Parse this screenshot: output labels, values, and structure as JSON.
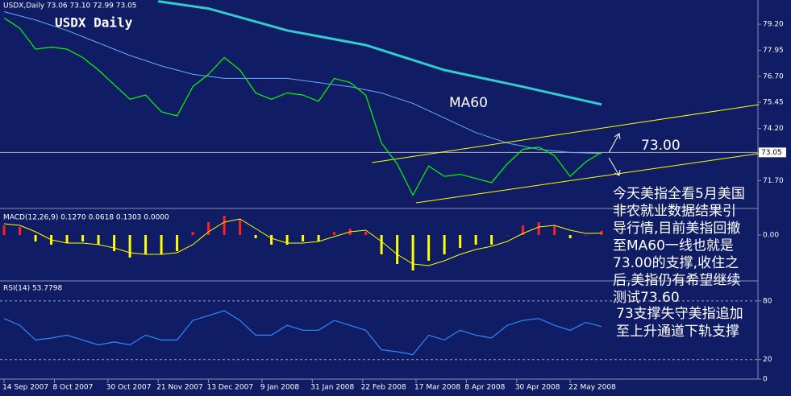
{
  "chart_data": [
    {
      "type": "line",
      "title": "USDX Daily",
      "subtitle": "USDX,Daily  73.06 73.10 72.99 73.05",
      "x": [
        0,
        5,
        10,
        15,
        20,
        25,
        30,
        35,
        40,
        45,
        50,
        55,
        60,
        65,
        70,
        75,
        80,
        85,
        90,
        95,
        100,
        105,
        110,
        115,
        120,
        125,
        130,
        135,
        140,
        145,
        150,
        155,
        160,
        165,
        170,
        175,
        180,
        185,
        190
      ],
      "series": [
        {
          "color": "#00ff00",
          "values": [
            79.5,
            79.0,
            78.0,
            78.1,
            78.0,
            77.6,
            77.0,
            76.3,
            75.6,
            75.8,
            75.0,
            74.8,
            76.2,
            76.8,
            77.6,
            77.0,
            75.9,
            75.6,
            75.9,
            75.8,
            75.5,
            76.6,
            76.4,
            75.8,
            73.5,
            72.5,
            71.0,
            72.4,
            71.9,
            72.0,
            71.8,
            71.6,
            72.5,
            73.2,
            73.3,
            72.9,
            71.9,
            72.6,
            73.05
          ]
        }
      ],
      "moving_averages": [
        {
          "color": "#33cccc",
          "x": [
            49,
            65,
            90,
            115,
            140,
            165,
            190
          ],
          "values": [
            80.3,
            79.95,
            78.9,
            78.2,
            77.0,
            76.2,
            75.35
          ]
        },
        {
          "color": "#66aaff",
          "x": [
            0,
            10,
            20,
            30,
            40,
            50,
            60,
            70,
            80,
            90,
            100,
            110,
            120,
            130,
            140,
            150,
            160,
            170,
            180,
            190
          ],
          "values": [
            79.8,
            79.4,
            78.9,
            78.3,
            77.7,
            77.2,
            76.8,
            76.6,
            76.6,
            76.6,
            76.4,
            76.2,
            75.9,
            75.4,
            74.7,
            74.0,
            73.5,
            73.2,
            73.05,
            73.0
          ]
        }
      ],
      "trendlines": [
        {
          "color": "#ffff00",
          "x": [
            131,
            240
          ],
          "values": [
            70.63,
            73.0
          ]
        },
        {
          "color": "#ffff00",
          "x": [
            117,
            240
          ],
          "values": [
            72.56,
            75.34
          ]
        }
      ],
      "last": 73.05,
      "xlim": [
        -1.3,
        239.7
      ],
      "ylim": [
        70.4,
        80.36
      ],
      "yticks": [
        {
          "value": 79.2,
          "label": "79.20"
        },
        77.95,
        {
          "value": 76.7,
          "label": "76.70"
        },
        75.45,
        {
          "value": 74.2,
          "label": "74.20"
        },
        {
          "value": 71.7,
          "label": "71.70"
        }
      ],
      "annotations": [
        "MA60",
        "73.00"
      ],
      "notes": [
        "今天美指全看5月美国",
        "非农就业数据结果引",
        "导行情,目前美指回撤",
        "至MA60一线也就是",
        "73.00的支撑,收住之",
        "后,美指仍有希望继续",
        "测试73.60",
        "73支撑失守美指追加",
        "至上升通道下轨支撑"
      ]
    },
    {
      "type": "bar",
      "title": "MACD(12,26,9) 0.1270 0.0618 0.1303 0.0000",
      "x": [
        0,
        5,
        10,
        15,
        20,
        25,
        30,
        35,
        40,
        45,
        50,
        55,
        60,
        65,
        70,
        75,
        80,
        85,
        90,
        95,
        100,
        105,
        110,
        115,
        120,
        125,
        130,
        135,
        140,
        145,
        150,
        155,
        160,
        165,
        170,
        175,
        180,
        185,
        190
      ],
      "values": [
        0.3,
        0.25,
        -0.2,
        -0.3,
        -0.25,
        -0.2,
        -0.3,
        -0.5,
        -0.7,
        -0.6,
        -0.6,
        -0.5,
        0.1,
        0.4,
        0.6,
        0.5,
        -0.1,
        -0.3,
        -0.3,
        -0.2,
        -0.2,
        0.1,
        0.2,
        0.1,
        -0.6,
        -0.9,
        -1.1,
        -0.8,
        -0.6,
        -0.4,
        -0.3,
        -0.3,
        0.0,
        0.3,
        0.4,
        0.3,
        -0.1,
        0.0,
        0.13
      ],
      "up_color": "#ff2020",
      "down_color": "#ffff00",
      "signal": {
        "color": "#ffff00",
        "values": [
          0.35,
          0.3,
          0.1,
          -0.15,
          -0.25,
          -0.25,
          -0.3,
          -0.4,
          -0.55,
          -0.6,
          -0.6,
          -0.55,
          -0.3,
          0.1,
          0.4,
          0.5,
          0.2,
          -0.1,
          -0.25,
          -0.25,
          -0.2,
          -0.05,
          0.1,
          0.15,
          -0.2,
          -0.6,
          -0.9,
          -0.95,
          -0.8,
          -0.6,
          -0.45,
          -0.35,
          -0.2,
          0.05,
          0.25,
          0.3,
          0.15,
          0.05,
          0.06
        ]
      },
      "xlim": [
        -1.3,
        239.7
      ],
      "ylim": [
        -1.4,
        0.75
      ],
      "yticks": [
        {
          "value": 0,
          "label": "0.00"
        }
      ]
    },
    {
      "type": "line",
      "title": "RSI(14) 53.7798",
      "x": [
        0,
        5,
        10,
        15,
        20,
        25,
        30,
        35,
        40,
        45,
        50,
        55,
        60,
        65,
        70,
        75,
        80,
        85,
        90,
        95,
        100,
        105,
        110,
        115,
        120,
        125,
        130,
        135,
        140,
        145,
        150,
        155,
        160,
        165,
        170,
        175,
        180,
        185,
        190
      ],
      "series": [
        {
          "color": "#2a8cff",
          "values": [
            62,
            55,
            40,
            42,
            45,
            40,
            35,
            38,
            35,
            45,
            40,
            40,
            60,
            65,
            70,
            60,
            45,
            45,
            55,
            50,
            50,
            60,
            55,
            50,
            30,
            28,
            25,
            45,
            40,
            50,
            45,
            42,
            55,
            60,
            62,
            55,
            50,
            58,
            53.78
          ]
        }
      ],
      "xlim": [
        -1.3,
        239.7
      ],
      "ylim": [
        0,
        98
      ],
      "yticks": [
        0,
        20,
        80
      ],
      "xticks": [
        {
          "value": 0,
          "label": "14 Sep 2007"
        },
        {
          "value": 16,
          "label": "8 Oct 2007"
        },
        {
          "value": 33,
          "label": "30 Oct 2007"
        },
        {
          "value": 49,
          "label": "21 Nov 2007"
        },
        {
          "value": 65,
          "label": "13 Dec 2007"
        },
        {
          "value": 82,
          "label": "9 Jan 2008"
        },
        {
          "value": 98,
          "label": "31 Jan 2008"
        },
        {
          "value": 114,
          "label": "22 Feb 2008"
        },
        {
          "value": 131,
          "label": "17 Mar 2008"
        },
        {
          "value": 147,
          "label": "8 Apr 2008"
        },
        {
          "value": 163,
          "label": "30 Apr 2008"
        },
        {
          "value": 180,
          "label": "22 May 2008"
        }
      ]
    }
  ]
}
